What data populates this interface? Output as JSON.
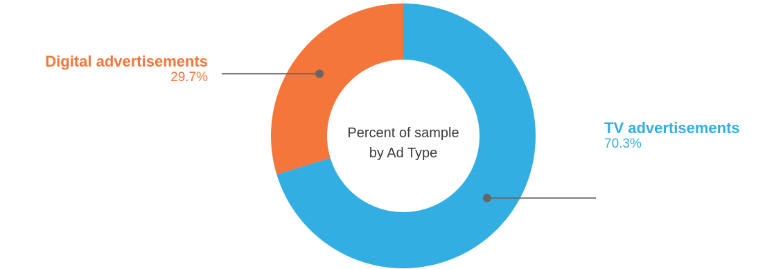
{
  "chart_data": {
    "type": "pie",
    "donut": true,
    "title": "Percent of sample by Ad Type",
    "categories": [
      "TV advertisements",
      "Digital advertisements"
    ],
    "values": [
      70.3,
      29.7
    ],
    "value_labels": [
      "70.3%",
      "29.7%"
    ],
    "colors": [
      "#33aee3",
      "#f4763a"
    ],
    "leader_line_color": "#666666"
  },
  "center": {
    "line1": "Percent of sample",
    "line2": "by Ad Type"
  },
  "labels": {
    "tv": {
      "name": "TV advertisements",
      "value": "70.3%"
    },
    "digital": {
      "name": "Digital advertisements",
      "value": "29.7%"
    }
  }
}
